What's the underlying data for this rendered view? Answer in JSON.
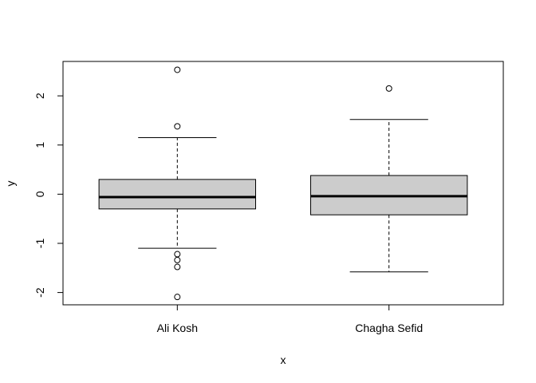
{
  "chart_data": {
    "type": "boxplot",
    "xlabel": "x",
    "ylabel": "y",
    "ylim": [
      -2.25,
      2.7
    ],
    "yticks": [
      -2,
      -1,
      0,
      1,
      2
    ],
    "ytick_labels": [
      "-2",
      "-1",
      "0",
      "1",
      "2"
    ],
    "categories": [
      "Ali Kosh",
      "Chagha Sefid"
    ],
    "boxes": [
      {
        "category": "Ali Kosh",
        "whisker_low": -1.1,
        "q1": -0.3,
        "median": -0.06,
        "q3": 0.3,
        "whisker_high": 1.15,
        "outliers": [
          2.53,
          1.38,
          -1.22,
          -1.34,
          -1.48,
          -2.09
        ]
      },
      {
        "category": "Chagha Sefid",
        "whisker_low": -1.58,
        "q1": -0.42,
        "median": -0.04,
        "q3": 0.38,
        "whisker_high": 1.52,
        "outliers": [
          2.15
        ]
      }
    ],
    "box_fill": "#cccccc",
    "line_color": "#000000",
    "grid": false
  }
}
